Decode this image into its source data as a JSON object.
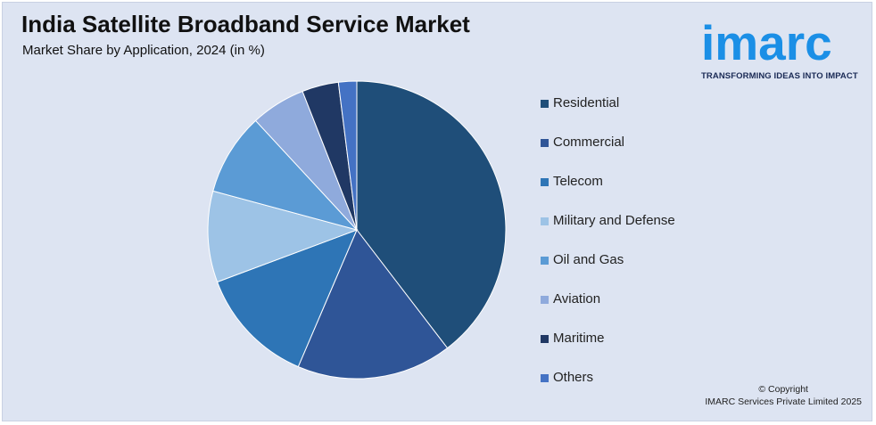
{
  "header": {
    "title": "India Satellite Broadband Service Market",
    "subtitle": "Market Share by Application, 2024 (in %)"
  },
  "logo": {
    "wordmark": "imarc",
    "tagline": "TRANSFORMING IDEAS INTO IMPACT",
    "color": "#1b8fe6"
  },
  "footer": {
    "copyright_line1": "© Copyright",
    "copyright_line2": "IMARC Services Private Limited 2025"
  },
  "chart_data": {
    "type": "pie",
    "title": "India Satellite Broadband Service Market",
    "subtitle": "Market Share by Application, 2024 (in %)",
    "legend_position": "right",
    "categories": [
      "Residential",
      "Commercial",
      "Telecom",
      "Military and Defense",
      "Oil and Gas",
      "Aviation",
      "Maritime",
      "Others"
    ],
    "values": [
      40,
      17,
      13,
      10,
      9,
      6,
      4,
      2
    ],
    "colors": [
      "#1f4e79",
      "#2f5597",
      "#2e75b6",
      "#9dc3e6",
      "#5b9bd5",
      "#8faadc",
      "#203864",
      "#4472c4"
    ]
  }
}
